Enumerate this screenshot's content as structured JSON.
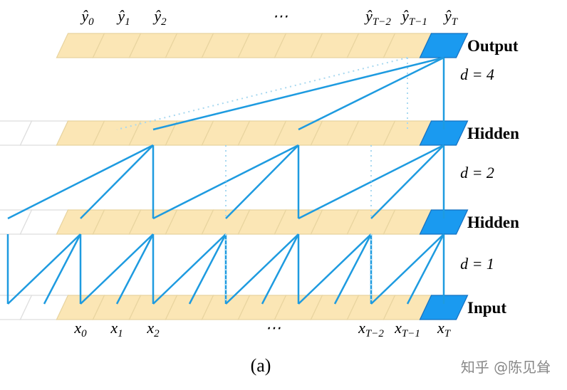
{
  "output_labels": [
    {
      "symbol": "ŷ",
      "subscript": "0"
    },
    {
      "symbol": "ŷ",
      "subscript": "1"
    },
    {
      "symbol": "ŷ",
      "subscript": "2"
    },
    {
      "symbol": "⋯",
      "subscript": ""
    },
    {
      "symbol": "ŷ",
      "subscript": "T−2"
    },
    {
      "symbol": "ŷ",
      "subscript": "T−1"
    },
    {
      "symbol": "ŷ",
      "subscript": "T"
    }
  ],
  "input_labels": [
    {
      "symbol": "x",
      "subscript": "0"
    },
    {
      "symbol": "x",
      "subscript": "1"
    },
    {
      "symbol": "x",
      "subscript": "2"
    },
    {
      "symbol": "⋯",
      "subscript": ""
    },
    {
      "symbol": "x",
      "subscript": "T−2"
    },
    {
      "symbol": "x",
      "subscript": "T−1"
    },
    {
      "symbol": "x",
      "subscript": "T"
    }
  ],
  "layers": [
    {
      "name": "Output"
    },
    {
      "name": "Hidden"
    },
    {
      "name": "Hidden"
    },
    {
      "name": "Input"
    }
  ],
  "dilations": [
    "d = 4",
    "d = 2",
    "d = 1"
  ],
  "caption": "(a)",
  "watermark": "知乎 @陈见耸"
}
